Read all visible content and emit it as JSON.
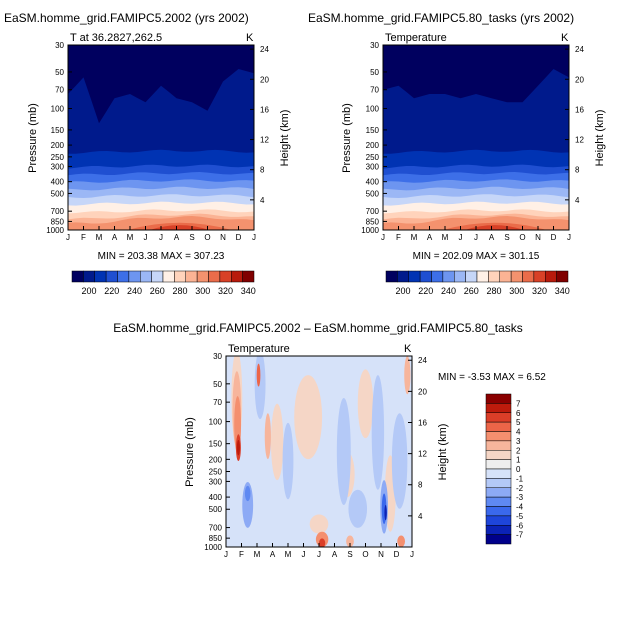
{
  "chart_data": [
    {
      "type": "heatmap",
      "title": "EaSM.homme_grid.FAMIPC5.2002 (yrs 2002)",
      "subtitle_left": "T at 36.2827,262.5",
      "subtitle_right": "K",
      "xlabel": "",
      "ylabel": "Pressure (mb)",
      "ylabel_right": "Height (km)",
      "x_ticks": [
        "J",
        "F",
        "M",
        "A",
        "M",
        "J",
        "J",
        "A",
        "S",
        "O",
        "N",
        "D",
        "J"
      ],
      "y_ticks": [
        "30",
        "50",
        "70",
        "100",
        "150",
        "200",
        "250",
        "300",
        "400",
        "500",
        "700",
        "850",
        "1000"
      ],
      "y_right_ticks": [
        "24",
        "20",
        "16",
        "12",
        "8",
        "4"
      ],
      "ylim": [
        30,
        1000
      ],
      "y_scale": "log",
      "stats": "MIN = 203.38 MAX = 307.23",
      "colorbar_labels": [
        "200",
        "220",
        "240",
        "260",
        "280",
        "300",
        "320",
        "340"
      ],
      "cold_level_month": [
        5.0,
        3.0,
        8.5,
        5.5,
        5.0,
        6.0,
        4.0,
        5.5,
        6.0,
        7.0,
        3.5,
        2.0,
        2.5
      ]
    },
    {
      "type": "heatmap",
      "title": "EaSM.homme_grid.FAMIPC5.80_tasks (yrs 2002)",
      "subtitle_left": "Temperature",
      "subtitle_right": "K",
      "xlabel": "",
      "ylabel": "Pressure (mb)",
      "ylabel_right": "Height (km)",
      "x_ticks": [
        "J",
        "F",
        "M",
        "A",
        "M",
        "J",
        "J",
        "A",
        "S",
        "O",
        "N",
        "D",
        "J"
      ],
      "y_ticks": [
        "30",
        "50",
        "70",
        "100",
        "150",
        "200",
        "250",
        "300",
        "400",
        "500",
        "700",
        "850",
        "1000"
      ],
      "y_right_ticks": [
        "24",
        "20",
        "16",
        "12",
        "8",
        "4"
      ],
      "ylim": [
        30,
        1000
      ],
      "y_scale": "log",
      "stats": "MIN = 202.09 MAX = 301.15",
      "colorbar_labels": [
        "200",
        "220",
        "240",
        "260",
        "280",
        "300",
        "320",
        "340"
      ],
      "cold_level_month": [
        4.5,
        4.0,
        5.5,
        5.0,
        5.0,
        5.5,
        5.0,
        5.5,
        6.0,
        6.0,
        4.0,
        2.0,
        3.0
      ]
    },
    {
      "type": "heatmap",
      "title": "EaSM.homme_grid.FAMIPC5.2002 – EaSM.homme_grid.FAMIPC5.80_tasks",
      "subtitle_left": "Temperature",
      "subtitle_right": "K",
      "xlabel": "",
      "ylabel": "Pressure (mb)",
      "ylabel_right": "Height (km)",
      "x_ticks": [
        "J",
        "F",
        "M",
        "A",
        "M",
        "J",
        "J",
        "A",
        "S",
        "O",
        "N",
        "D",
        "J"
      ],
      "y_ticks": [
        "30",
        "50",
        "70",
        "100",
        "150",
        "200",
        "250",
        "300",
        "400",
        "500",
        "700",
        "850",
        "1000"
      ],
      "y_right_ticks": [
        "24",
        "20",
        "16",
        "12",
        "8",
        "4"
      ],
      "ylim": [
        30,
        1000
      ],
      "y_scale": "log",
      "stats": "MIN = -3.53 MAX = 6.52",
      "colorbar_labels": [
        "7",
        "6",
        "5",
        "4",
        "3",
        "2",
        "1",
        "0",
        "-1",
        "-2",
        "-3",
        "-4",
        "-5",
        "-6",
        "-7"
      ]
    }
  ],
  "colors": {
    "seq_palette": [
      "#00005f",
      "#001a8c",
      "#0033b3",
      "#1f4fd1",
      "#3d6fe8",
      "#6d95f0",
      "#9bb7f5",
      "#c6d6f8",
      "#fff0e6",
      "#ffd3bb",
      "#fbb394",
      "#f4926e",
      "#ea6c4a",
      "#d84127",
      "#b81a0c",
      "#800000"
    ],
    "div_palette": [
      "#00008a",
      "#0b22b6",
      "#1e45da",
      "#3a68ec",
      "#5f89f2",
      "#8daaf5",
      "#b4c9f7",
      "#d6e2f9",
      "#eeeeee",
      "#f5d6c6",
      "#f7b59c",
      "#f48f6f",
      "#ec6548",
      "#db3e28",
      "#bd1b0c",
      "#8a0000"
    ]
  }
}
